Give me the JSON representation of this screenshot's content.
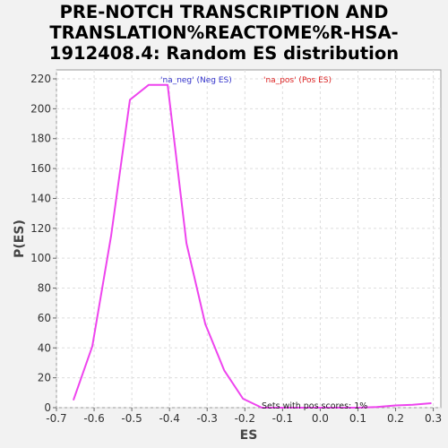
{
  "chart_data": {
    "type": "line",
    "title": "PRE-NOTCH TRANSCRIPTION AND\nTRANSLATION%REACTOME%R-HSA-\n1912408.4: Random ES distribution",
    "xlabel": "ES",
    "ylabel": "P(ES)",
    "xlim": [
      -0.7,
      0.32
    ],
    "ylim": [
      0,
      226
    ],
    "x_ticks": [
      -0.7,
      -0.6,
      -0.5,
      -0.4,
      -0.3,
      -0.2,
      -0.1,
      0.0,
      0.1,
      0.2,
      0.3
    ],
    "x_tick_labels": [
      "-0.7",
      "-0.6",
      "-0.5",
      "-0.4",
      "-0.3",
      "-0.2",
      "-0.1",
      "0.0",
      "0.1",
      "0.2",
      "0.3"
    ],
    "y_ticks": [
      0,
      20,
      40,
      60,
      80,
      100,
      120,
      140,
      160,
      180,
      200,
      220
    ],
    "y_tick_labels": [
      "0",
      "20",
      "40",
      "60",
      "80",
      "100",
      "120",
      "140",
      "160",
      "180",
      "200",
      "220"
    ],
    "grid": true,
    "legend": [
      {
        "label": "'na_neg' (Neg ES)",
        "color": "#3333cc"
      },
      {
        "label": "'na_pos' (Pos ES)",
        "color": "#dd2222"
      }
    ],
    "annotation": "Sets with pos scores: 1%",
    "series": [
      {
        "color": "#ee44ee",
        "x": [
          -0.655,
          -0.605,
          -0.555,
          -0.505,
          -0.455,
          -0.405,
          -0.355,
          -0.305,
          -0.255,
          -0.205,
          -0.155,
          -0.105,
          -0.055,
          0.0,
          0.05,
          0.1,
          0.15,
          0.2,
          0.245,
          0.295
        ],
        "y": [
          5,
          41,
          115,
          206,
          216,
          216,
          110,
          56,
          25,
          6,
          0,
          0,
          0,
          0,
          0,
          0,
          0.5,
          1.5,
          2,
          3
        ]
      }
    ]
  }
}
